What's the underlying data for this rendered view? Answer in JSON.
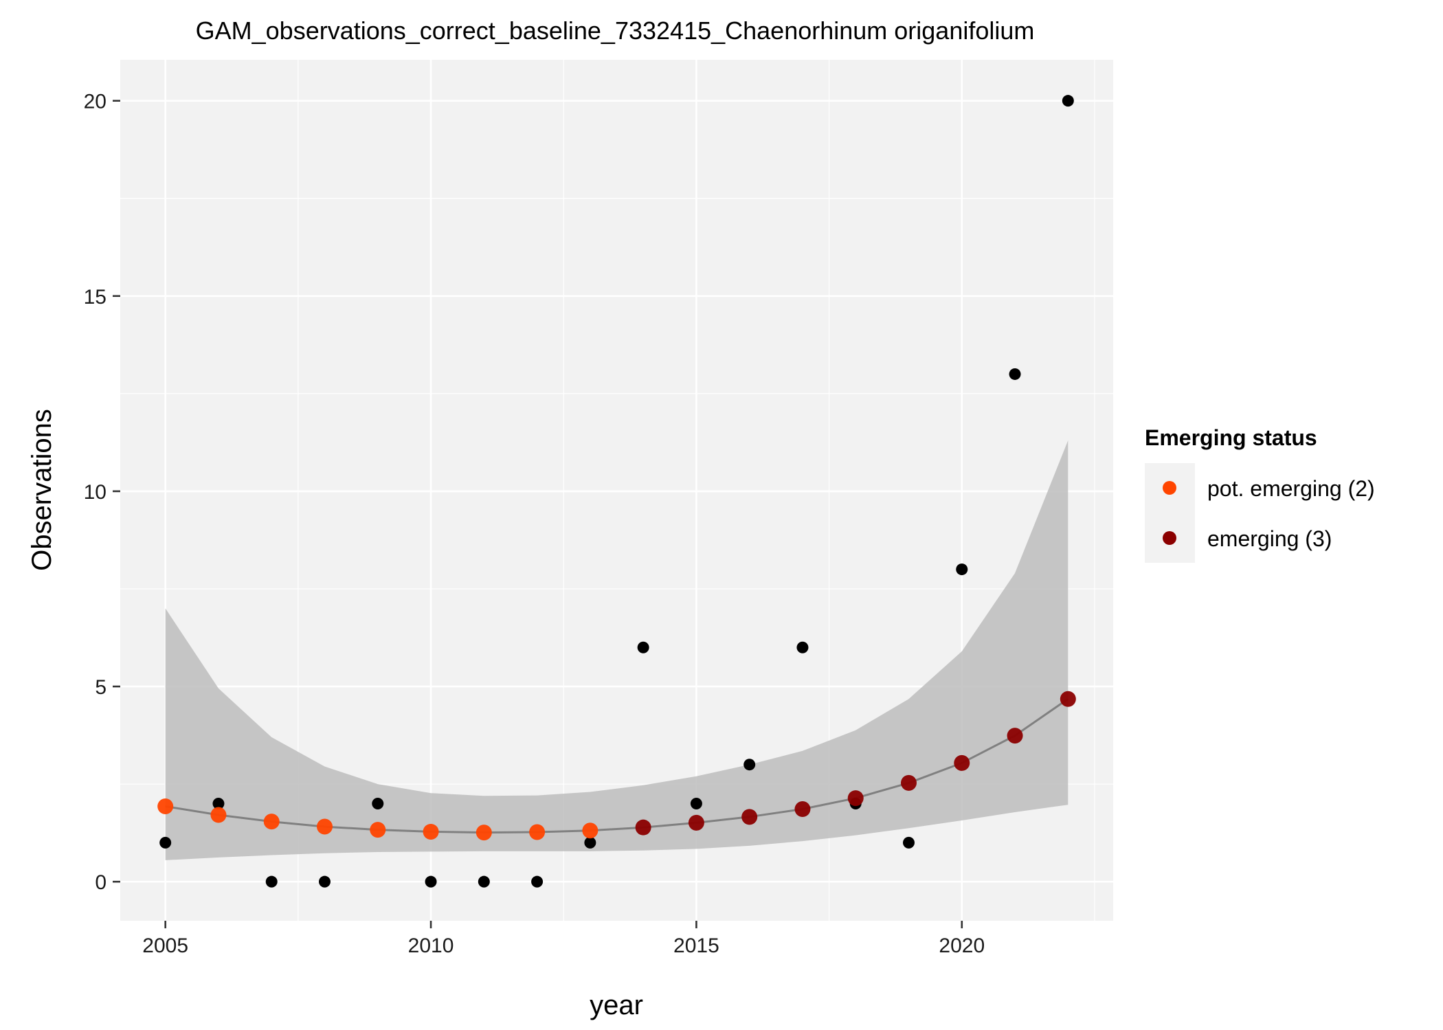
{
  "chart_data": {
    "type": "scatter",
    "title": "GAM_observations_correct_baseline_7332415_Chaenorhinum origanifolium",
    "xlabel": "year",
    "ylabel": "Observations",
    "xlim": [
      2004.15,
      2022.85
    ],
    "ylim": [
      -1,
      21.05
    ],
    "x_ticks": [
      2005,
      2010,
      2015,
      2020
    ],
    "y_ticks": [
      0,
      5,
      10,
      15,
      20
    ],
    "x_tick_labels": [
      "2005",
      "2010",
      "2015",
      "2020"
    ],
    "y_tick_labels": [
      "0",
      "5",
      "10",
      "15",
      "20"
    ],
    "grid": true,
    "legend_position": "right",
    "observed": {
      "color": "#000000",
      "x": [
        2005,
        2006,
        2007,
        2008,
        2009,
        2010,
        2011,
        2012,
        2013,
        2014,
        2015,
        2016,
        2017,
        2018,
        2019,
        2020,
        2021,
        2022
      ],
      "y": [
        1,
        2,
        0,
        0,
        2,
        0,
        0,
        0,
        1,
        6,
        2,
        3,
        6,
        2,
        1,
        8,
        13,
        20
      ]
    },
    "fit": {
      "line_color": "#808080",
      "ribbon_color": "#bdbdbd",
      "x": [
        2005,
        2006,
        2007,
        2008,
        2009,
        2010,
        2011,
        2012,
        2013,
        2014,
        2015,
        2016,
        2017,
        2018,
        2019,
        2020,
        2021,
        2022
      ],
      "y": [
        1.93,
        1.71,
        1.54,
        1.41,
        1.33,
        1.28,
        1.26,
        1.27,
        1.31,
        1.39,
        1.51,
        1.66,
        1.86,
        2.14,
        2.53,
        3.04,
        3.74,
        4.68
      ],
      "lower": [
        0.55,
        0.62,
        0.68,
        0.73,
        0.76,
        0.77,
        0.78,
        0.78,
        0.78,
        0.8,
        0.84,
        0.92,
        1.04,
        1.19,
        1.37,
        1.57,
        1.78,
        1.97
      ],
      "upper": [
        7.0,
        4.95,
        3.7,
        2.95,
        2.5,
        2.27,
        2.2,
        2.21,
        2.3,
        2.47,
        2.7,
        3.0,
        3.35,
        3.88,
        4.68,
        5.9,
        7.9,
        11.3
      ],
      "status": [
        2,
        2,
        2,
        2,
        2,
        2,
        2,
        2,
        2,
        3,
        3,
        3,
        3,
        3,
        3,
        3,
        3,
        3
      ]
    },
    "series": [
      {
        "name": "pot. emerging (2)",
        "status": 2,
        "color": "#ff4500"
      },
      {
        "name": "emerging (3)",
        "status": 3,
        "color": "#8b0000"
      }
    ]
  },
  "legend": {
    "title": "Emerging status",
    "items": [
      {
        "label": "pot. emerging (2)",
        "color": "#ff4500"
      },
      {
        "label": "emerging (3)",
        "color": "#8b0000"
      }
    ]
  },
  "colors": {
    "panel_background": "#f2f2f2",
    "grid": "#ffffff",
    "axis_ticks": "#333333"
  }
}
